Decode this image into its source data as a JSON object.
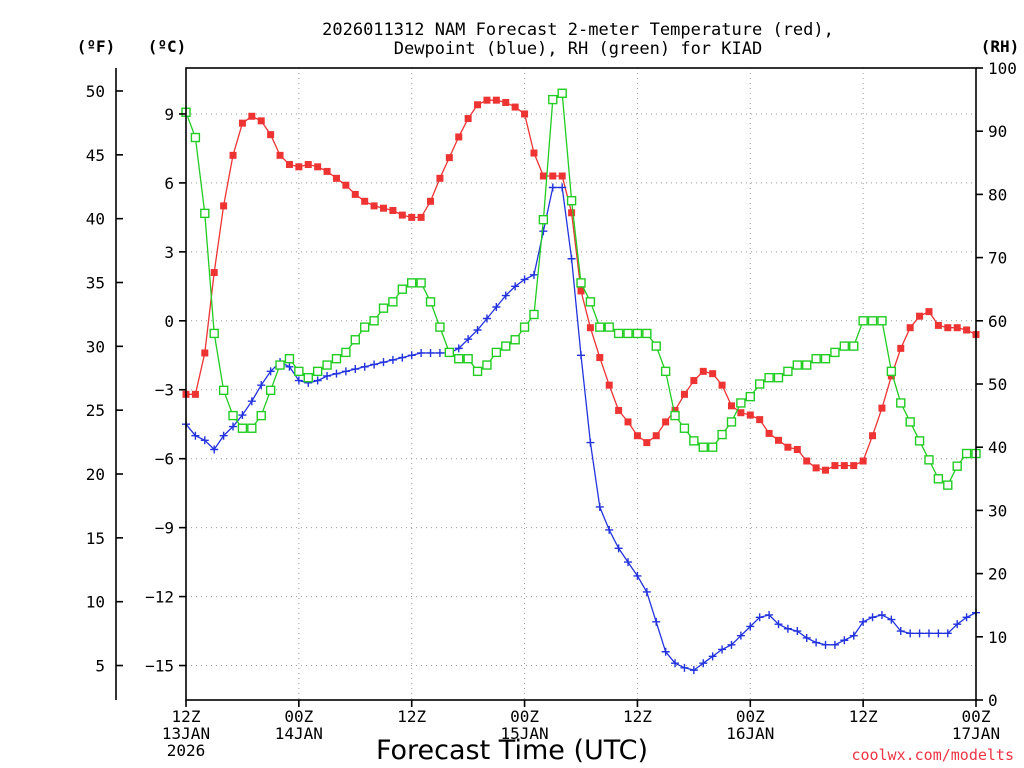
{
  "chart_data": {
    "type": "line",
    "title_lines": [
      "2026011312 NAM Forecast 2-meter Temperature (red),",
      "Dewpoint (blue), RH (green) for KIAD"
    ],
    "units": {
      "fahrenheit": "(ºF)",
      "celsius": "(ºC)",
      "rh": "(RH)"
    },
    "xlabel": "Forecast Time (UTC)",
    "credit": "coolwx.com/modelts",
    "x_unit": "forecast hour from 2026-01-13 12Z",
    "xlim": [
      0,
      84
    ],
    "x_ticks": [
      {
        "hour": 0,
        "lines": [
          "12Z",
          "13JAN",
          "2026"
        ]
      },
      {
        "hour": 12,
        "lines": [
          "00Z",
          "14JAN"
        ]
      },
      {
        "hour": 24,
        "lines": [
          "12Z"
        ]
      },
      {
        "hour": 36,
        "lines": [
          "00Z",
          "15JAN"
        ]
      },
      {
        "hour": 48,
        "lines": [
          "12Z"
        ]
      },
      {
        "hour": 60,
        "lines": [
          "00Z",
          "16JAN"
        ]
      },
      {
        "hour": 72,
        "lines": [
          "12Z"
        ]
      },
      {
        "hour": 84,
        "lines": [
          "00Z",
          "17JAN"
        ]
      }
    ],
    "celsius_axis": {
      "ylim": [
        -16.5,
        11.0
      ],
      "ticks": [
        "9",
        "6",
        "3",
        "0",
        "−3",
        "−6",
        "−9",
        "−12",
        "−15"
      ],
      "values": [
        9,
        6,
        3,
        0,
        -3,
        -6,
        -9,
        -12,
        -15
      ]
    },
    "fahrenheit_axis": {
      "ticks": [
        "50",
        "45",
        "40",
        "35",
        "30",
        "25",
        "20",
        "15",
        "10",
        "5"
      ],
      "values": [
        50,
        45,
        40,
        35,
        30,
        25,
        20,
        15,
        10,
        5
      ]
    },
    "rh_axis": {
      "ylim": [
        0,
        100
      ],
      "ticks": [
        "100",
        "90",
        "80",
        "70",
        "60",
        "50",
        "40",
        "30",
        "20",
        "10",
        "0"
      ],
      "values": [
        100,
        90,
        80,
        70,
        60,
        50,
        40,
        30,
        20,
        10,
        0
      ]
    },
    "series": [
      {
        "name": "2-meter Temperature",
        "unit": "C",
        "axis": "celsius",
        "color": "#ee3333",
        "marker": "filled-square",
        "x": [
          0,
          1,
          2,
          3,
          4,
          5,
          6,
          7,
          8,
          9,
          10,
          11,
          12,
          13,
          14,
          15,
          16,
          17,
          18,
          19,
          20,
          21,
          22,
          23,
          24,
          25,
          26,
          27,
          28,
          29,
          30,
          31,
          32,
          33,
          34,
          35,
          36,
          37,
          38,
          39,
          40,
          41,
          42,
          43,
          44,
          45,
          46,
          47,
          48,
          49,
          50,
          51,
          52,
          53,
          54,
          55,
          56,
          57,
          58,
          59,
          60,
          61,
          62,
          63,
          64,
          65,
          66,
          67,
          68,
          69,
          70,
          71,
          72,
          73,
          74,
          75,
          76,
          77,
          78,
          79,
          80,
          81,
          82,
          83,
          84
        ],
        "values": [
          -3.2,
          -3.2,
          -1.4,
          2.1,
          5.0,
          7.2,
          8.6,
          8.9,
          8.7,
          8.1,
          7.2,
          6.8,
          6.7,
          6.8,
          6.7,
          6.5,
          6.2,
          5.9,
          5.5,
          5.2,
          5.0,
          4.9,
          4.8,
          4.6,
          4.5,
          4.5,
          5.2,
          6.2,
          7.1,
          8.0,
          8.8,
          9.4,
          9.6,
          9.6,
          9.5,
          9.3,
          9.0,
          7.3,
          6.3,
          6.3,
          6.3,
          4.7,
          1.3,
          -0.3,
          -1.6,
          -2.8,
          -3.9,
          -4.4,
          -5.0,
          -5.3,
          -5.0,
          -4.4,
          -3.9,
          -3.2,
          -2.6,
          -2.2,
          -2.3,
          -2.8,
          -3.7,
          -4.0,
          -4.1,
          -4.3,
          -4.9,
          -5.2,
          -5.5,
          -5.6,
          -6.1,
          -6.4,
          -6.5,
          -6.3,
          -6.3,
          -6.3,
          -6.1,
          -5.0,
          -3.8,
          -2.4,
          -1.2,
          -0.3,
          0.2,
          0.4,
          -0.2,
          -0.3,
          -0.3,
          -0.4,
          -0.6
        ]
      },
      {
        "name": "Dewpoint",
        "unit": "C",
        "axis": "celsius",
        "color": "#2233dd",
        "marker": "plus",
        "x": [
          0,
          1,
          2,
          3,
          4,
          5,
          6,
          7,
          8,
          9,
          10,
          11,
          12,
          13,
          14,
          15,
          16,
          17,
          18,
          19,
          20,
          21,
          22,
          23,
          24,
          25,
          26,
          27,
          28,
          29,
          30,
          31,
          32,
          33,
          34,
          35,
          36,
          37,
          38,
          39,
          40,
          41,
          42,
          43,
          44,
          45,
          46,
          47,
          48,
          49,
          50,
          51,
          52,
          53,
          54,
          55,
          56,
          57,
          58,
          59,
          60,
          61,
          62,
          63,
          64,
          65,
          66,
          67,
          68,
          69,
          70,
          71,
          72,
          73,
          74,
          75,
          76,
          77,
          78,
          79,
          80,
          81,
          82,
          83,
          84
        ],
        "values": [
          -4.5,
          -5.0,
          -5.2,
          -5.6,
          -5.0,
          -4.6,
          -4.1,
          -3.5,
          -2.8,
          -2.2,
          -1.8,
          -2.0,
          -2.6,
          -2.7,
          -2.6,
          -2.4,
          -2.3,
          -2.2,
          -2.1,
          -2.0,
          -1.9,
          -1.8,
          -1.7,
          -1.6,
          -1.5,
          -1.4,
          -1.4,
          -1.4,
          -1.4,
          -1.2,
          -0.8,
          -0.4,
          0.1,
          0.6,
          1.1,
          1.5,
          1.8,
          2.0,
          3.9,
          5.8,
          5.8,
          2.7,
          -1.5,
          -5.3,
          -8.1,
          -9.1,
          -9.9,
          -10.5,
          -11.1,
          -11.8,
          -13.1,
          -14.4,
          -14.9,
          -15.1,
          -15.2,
          -14.9,
          -14.6,
          -14.3,
          -14.1,
          -13.7,
          -13.3,
          -12.9,
          -12.8,
          -13.2,
          -13.4,
          -13.5,
          -13.8,
          -14.0,
          -14.1,
          -14.1,
          -13.9,
          -13.7,
          -13.1,
          -12.9,
          -12.8,
          -13.0,
          -13.5,
          -13.6,
          -13.6,
          -13.6,
          -13.6,
          -13.6,
          -13.2,
          -12.9,
          -12.7
        ]
      },
      {
        "name": "RH",
        "unit": "%",
        "axis": "rh",
        "color": "#22cc22",
        "marker": "open-square",
        "x": [
          0,
          1,
          2,
          3,
          4,
          5,
          6,
          7,
          8,
          9,
          10,
          11,
          12,
          13,
          14,
          15,
          16,
          17,
          18,
          19,
          20,
          21,
          22,
          23,
          24,
          25,
          26,
          27,
          28,
          29,
          30,
          31,
          32,
          33,
          34,
          35,
          36,
          37,
          38,
          39,
          40,
          41,
          42,
          43,
          44,
          45,
          46,
          47,
          48,
          49,
          50,
          51,
          52,
          53,
          54,
          55,
          56,
          57,
          58,
          59,
          60,
          61,
          62,
          63,
          64,
          65,
          66,
          67,
          68,
          69,
          70,
          71,
          72,
          73,
          74,
          75,
          76,
          77,
          78,
          79,
          80,
          81,
          82,
          83,
          84
        ],
        "values": [
          93,
          89,
          77,
          58,
          49,
          45,
          43,
          43,
          45,
          49,
          53,
          54,
          52,
          51,
          52,
          53,
          54,
          55,
          57,
          59,
          60,
          62,
          63,
          65,
          66,
          66,
          63,
          59,
          55,
          54,
          54,
          52,
          53,
          55,
          56,
          57,
          59,
          61,
          76,
          95,
          96,
          79,
          66,
          63,
          59,
          59,
          58,
          58,
          58,
          58,
          56,
          52,
          45,
          43,
          41,
          40,
          40,
          42,
          44,
          47,
          48,
          50,
          51,
          51,
          52,
          53,
          53,
          54,
          54,
          55,
          56,
          56,
          60,
          60,
          60,
          52,
          47,
          44,
          41,
          38,
          35,
          34,
          37,
          39,
          39
        ]
      }
    ]
  }
}
